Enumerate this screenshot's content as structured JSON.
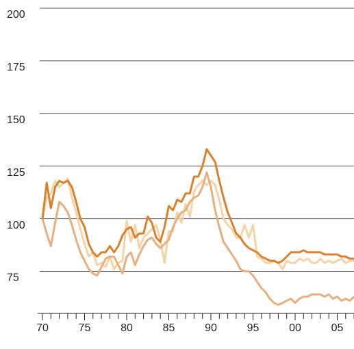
{
  "chart_data": {
    "type": "line",
    "x": [
      1970,
      1970.5,
      1971,
      1971.5,
      1972,
      1972.5,
      1973,
      1973.5,
      1974,
      1974.5,
      1975,
      1975.5,
      1976,
      1976.5,
      1977,
      1977.5,
      1978,
      1978.5,
      1979,
      1979.5,
      1980,
      1980.5,
      1981,
      1981.5,
      1982,
      1982.5,
      1983,
      1983.5,
      1984,
      1984.5,
      1985,
      1985.5,
      1986,
      1986.5,
      1987,
      1987.5,
      1988,
      1988.5,
      1989,
      1989.5,
      1990,
      1990.5,
      1991,
      1991.5,
      1992,
      1992.5,
      1993,
      1993.5,
      1994,
      1994.5,
      1995,
      1995.5,
      1996,
      1996.5,
      1997,
      1997.5,
      1998,
      1998.5,
      1999,
      1999.5,
      2000,
      2000.5,
      2001,
      2001.5,
      2002,
      2002.5,
      2003,
      2003.5,
      2004,
      2004.5,
      2005,
      2005.5,
      2006,
      2006.5,
      2007
    ],
    "series": [
      {
        "color": "#f6d3a6",
        "values": [
          100,
          110,
          112,
          118,
          115,
          117,
          119,
          110,
          103,
          95,
          88,
          82,
          84,
          78,
          79,
          77,
          82,
          76,
          79,
          80,
          99,
          89,
          97,
          86,
          91,
          93,
          95,
          97,
          90,
          79,
          94,
          94,
          103,
          98,
          107,
          101,
          113,
          116,
          118,
          116,
          118,
          116,
          109,
          100,
          97,
          95,
          91,
          91,
          97,
          91,
          97,
          82,
          81,
          79,
          79,
          80,
          79,
          76,
          80,
          79,
          79,
          81,
          80,
          81,
          79,
          79,
          81,
          79,
          80,
          79,
          80,
          81,
          79,
          80,
          80
        ]
      },
      {
        "color": "#e9ae7e",
        "values": [
          100,
          93,
          87,
          98,
          108,
          106,
          103,
          97,
          90,
          84,
          80,
          76,
          74,
          73,
          77,
          81,
          82,
          82,
          78,
          74,
          82,
          84,
          78,
          83,
          87,
          90,
          91,
          88,
          86,
          88,
          90,
          96,
          100,
          103,
          104,
          108,
          110,
          111,
          115,
          122,
          115,
          104,
          96,
          89,
          86,
          83,
          80,
          76,
          75,
          75,
          73,
          70,
          67,
          65,
          62,
          60,
          59,
          60,
          61,
          62,
          60,
          62,
          63,
          63,
          64,
          64,
          64,
          63,
          64,
          62,
          63,
          61,
          62,
          61,
          63
        ]
      },
      {
        "color": "#d9822b",
        "values": [
          100,
          117,
          105,
          115,
          118,
          117,
          118,
          115,
          108,
          100,
          96,
          88,
          84,
          82,
          84,
          84,
          87,
          84,
          87,
          92,
          95,
          96,
          91,
          93,
          93,
          101,
          98,
          91,
          89,
          96,
          106,
          104,
          109,
          108,
          112,
          112,
          120,
          120,
          125,
          133,
          130,
          127,
          118,
          110,
          103,
          98,
          93,
          91,
          88,
          86,
          85,
          84,
          82,
          81,
          80,
          80,
          79,
          80,
          82,
          84,
          84,
          84,
          85,
          84,
          84,
          84,
          84,
          83,
          83,
          83,
          83,
          82,
          82,
          81,
          81
        ]
      }
    ],
    "xlim": [
      1970,
      2007
    ],
    "xticks": [
      {
        "value": 1970,
        "label": "70"
      },
      {
        "value": 1975,
        "label": "75"
      },
      {
        "value": 1980,
        "label": "80"
      },
      {
        "value": 1985,
        "label": "85"
      },
      {
        "value": 1990,
        "label": "90"
      },
      {
        "value": 1995,
        "label": "95"
      },
      {
        "value": 2000,
        "label": "00"
      },
      {
        "value": 2005,
        "label": "05"
      }
    ],
    "xminorticks": [
      1970,
      1971,
      1972,
      1973,
      1974,
      1975,
      1976,
      1977,
      1978,
      1979,
      1980,
      1981,
      1982,
      1983,
      1984,
      1985,
      1986,
      1987,
      1988,
      1989,
      1990,
      1991,
      1992,
      1993,
      1994,
      1995,
      1996,
      1997,
      1998,
      1999,
      2000,
      2001,
      2002,
      2003,
      2004,
      2005,
      2006,
      2007
    ],
    "ylim": [
      55,
      200
    ],
    "yticks": [
      75,
      100,
      125,
      150,
      175,
      200
    ],
    "grid": true
  }
}
